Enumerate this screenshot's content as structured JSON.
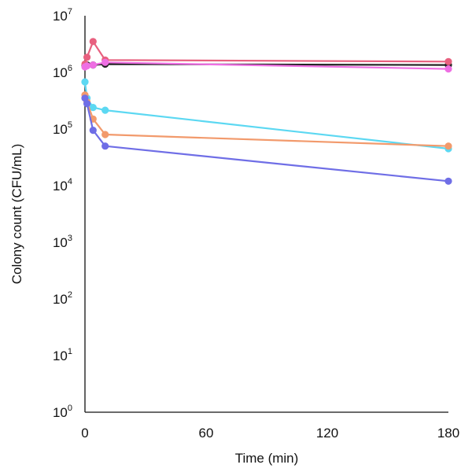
{
  "chart_data": {
    "type": "line",
    "xlabel": "Time (min)",
    "ylabel": "Colony count (CFU/mL)",
    "xlim": [
      0,
      180
    ],
    "x_ticks": [
      "0",
      "60",
      "120",
      "180"
    ],
    "y_scale": "log",
    "ylim": [
      1,
      10000000
    ],
    "y_ticks": [
      {
        "base": "10",
        "exp": "0"
      },
      {
        "base": "10",
        "exp": "1"
      },
      {
        "base": "10",
        "exp": "2"
      },
      {
        "base": "10",
        "exp": "3"
      },
      {
        "base": "10",
        "exp": "4"
      },
      {
        "base": "10",
        "exp": "5"
      },
      {
        "base": "10",
        "exp": "6"
      },
      {
        "base": "10",
        "exp": "7"
      }
    ],
    "grid": false,
    "legend": "none",
    "series": [
      {
        "color": "#222222",
        "x": [
          0,
          1,
          4,
          10,
          180
        ],
        "y": [
          1300000,
          1350000,
          1350000,
          1400000,
          1350000
        ]
      },
      {
        "color": "#e8607f",
        "x": [
          0,
          1,
          4,
          10,
          180
        ],
        "y": [
          1400000,
          1850000,
          3500000,
          1650000,
          1550000
        ]
      },
      {
        "color": "#ee6fe3",
        "x": [
          0,
          1,
          4,
          10,
          180
        ],
        "y": [
          1250000,
          1300000,
          1350000,
          1500000,
          1150000
        ]
      },
      {
        "color": "#5cd8f2",
        "x": [
          0,
          1,
          4,
          10,
          180
        ],
        "y": [
          680000,
          350000,
          240000,
          215000,
          45000
        ]
      },
      {
        "color": "#f29a6c",
        "x": [
          0,
          1,
          4,
          10,
          180
        ],
        "y": [
          400000,
          300000,
          150000,
          80000,
          50000
        ]
      },
      {
        "color": "#6f6ee6",
        "x": [
          0,
          1,
          4,
          10,
          180
        ],
        "y": [
          350000,
          280000,
          95000,
          50000,
          12000
        ]
      }
    ]
  }
}
